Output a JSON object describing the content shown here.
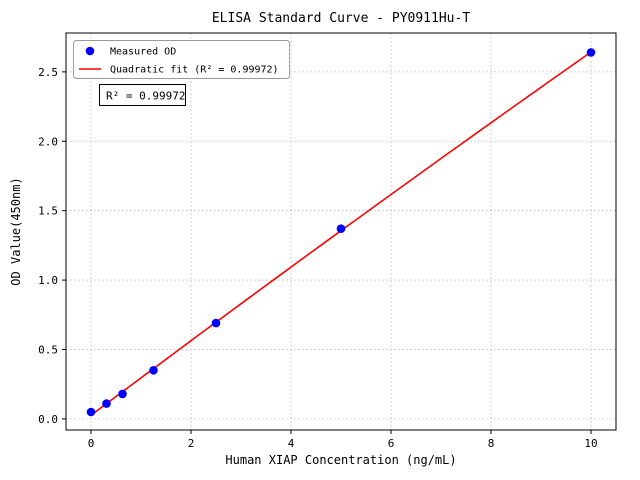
{
  "figure": {
    "background": "#ffffff"
  },
  "chart_data": {
    "type": "scatter",
    "title": "ELISA Standard Curve - PY0911Hu-T",
    "xlabel": "Human XIAP Concentration (ng/mL)",
    "ylabel": "OD Value(450nm)",
    "xlim": [
      -0.5,
      10.5
    ],
    "ylim": [
      -0.08,
      2.78
    ],
    "xticks": [
      0,
      2,
      4,
      6,
      8,
      10
    ],
    "xtick_labels": [
      "0",
      "2",
      "4",
      "6",
      "8",
      "10"
    ],
    "yticks": [
      0.0,
      0.5,
      1.0,
      1.5,
      2.0,
      2.5
    ],
    "ytick_labels": [
      "0.0",
      "0.5",
      "1.0",
      "1.5",
      "2.0",
      "2.5"
    ],
    "grid": true,
    "grid_style": "dotted",
    "grid_color": "#b3b3b3",
    "legend_position": "upper left",
    "series": [
      {
        "name": "Measured OD",
        "kind": "scatter",
        "color": "#0000ff",
        "x": [
          0,
          0.31,
          0.63,
          1.25,
          2.5,
          5,
          10
        ],
        "y": [
          0.05,
          0.11,
          0.18,
          0.35,
          0.69,
          1.37,
          2.64
        ]
      },
      {
        "name": "Quadratic fit (R² = 0.99972)",
        "kind": "line",
        "fit": "quadratic",
        "color": "#ff0000",
        "x_range": [
          0,
          10
        ]
      }
    ],
    "annotation": {
      "text": "R² = 0.99972",
      "border_color": "#000000",
      "background": "#ffffff"
    }
  }
}
